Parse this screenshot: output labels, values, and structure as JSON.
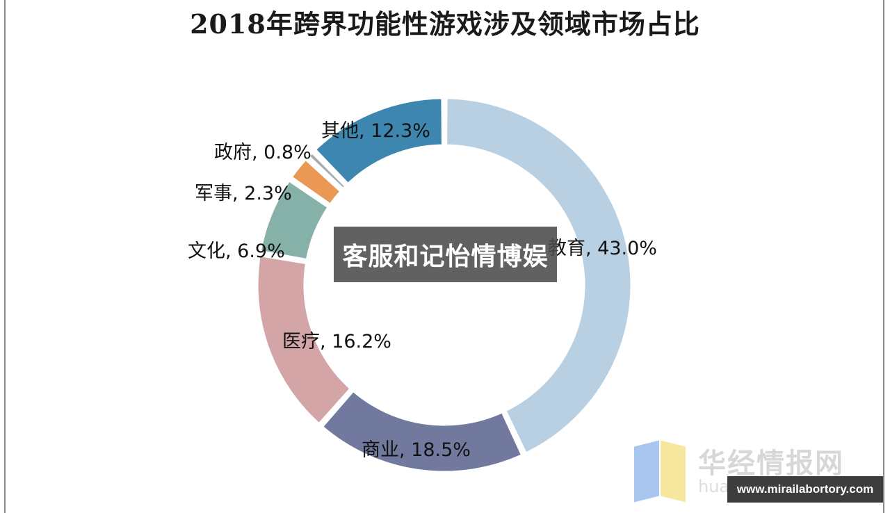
{
  "chart_data": {
    "type": "pie",
    "variant": "donut",
    "title": "2018年跨界功能性游戏涉及领域市场占比",
    "slices": [
      {
        "name": "教育",
        "value": 43.0,
        "label": "教育, 43.0%",
        "color": "#b8d0e1"
      },
      {
        "name": "商业",
        "value": 18.5,
        "label": "商业, 18.5%",
        "color": "#717a9e"
      },
      {
        "name": "医疗",
        "value": 16.2,
        "label": "医疗, 16.2%",
        "color": "#d4a5a7"
      },
      {
        "name": "文化",
        "value": 6.9,
        "label": "文化, 6.9%",
        "color": "#86b1a9"
      },
      {
        "name": "军事",
        "value": 2.3,
        "label": "军事, 2.3%",
        "color": "#eb9855"
      },
      {
        "name": "政府",
        "value": 0.8,
        "label": "政府, 0.8%",
        "color": "#a8adb0"
      },
      {
        "name": "其他",
        "value": 12.3,
        "label": "其他, 12.3%",
        "color": "#3d86b0"
      }
    ],
    "legend": "none",
    "data_labels": "outside-on-ring"
  },
  "overlay_text": "客服和记怡情博娱",
  "watermark": {
    "brand": "华经情报网",
    "sub": "huaon.com",
    "colors": [
      "#a9c6ee",
      "#f5e79e"
    ]
  },
  "url_badge": "www.mirailabortory.com"
}
